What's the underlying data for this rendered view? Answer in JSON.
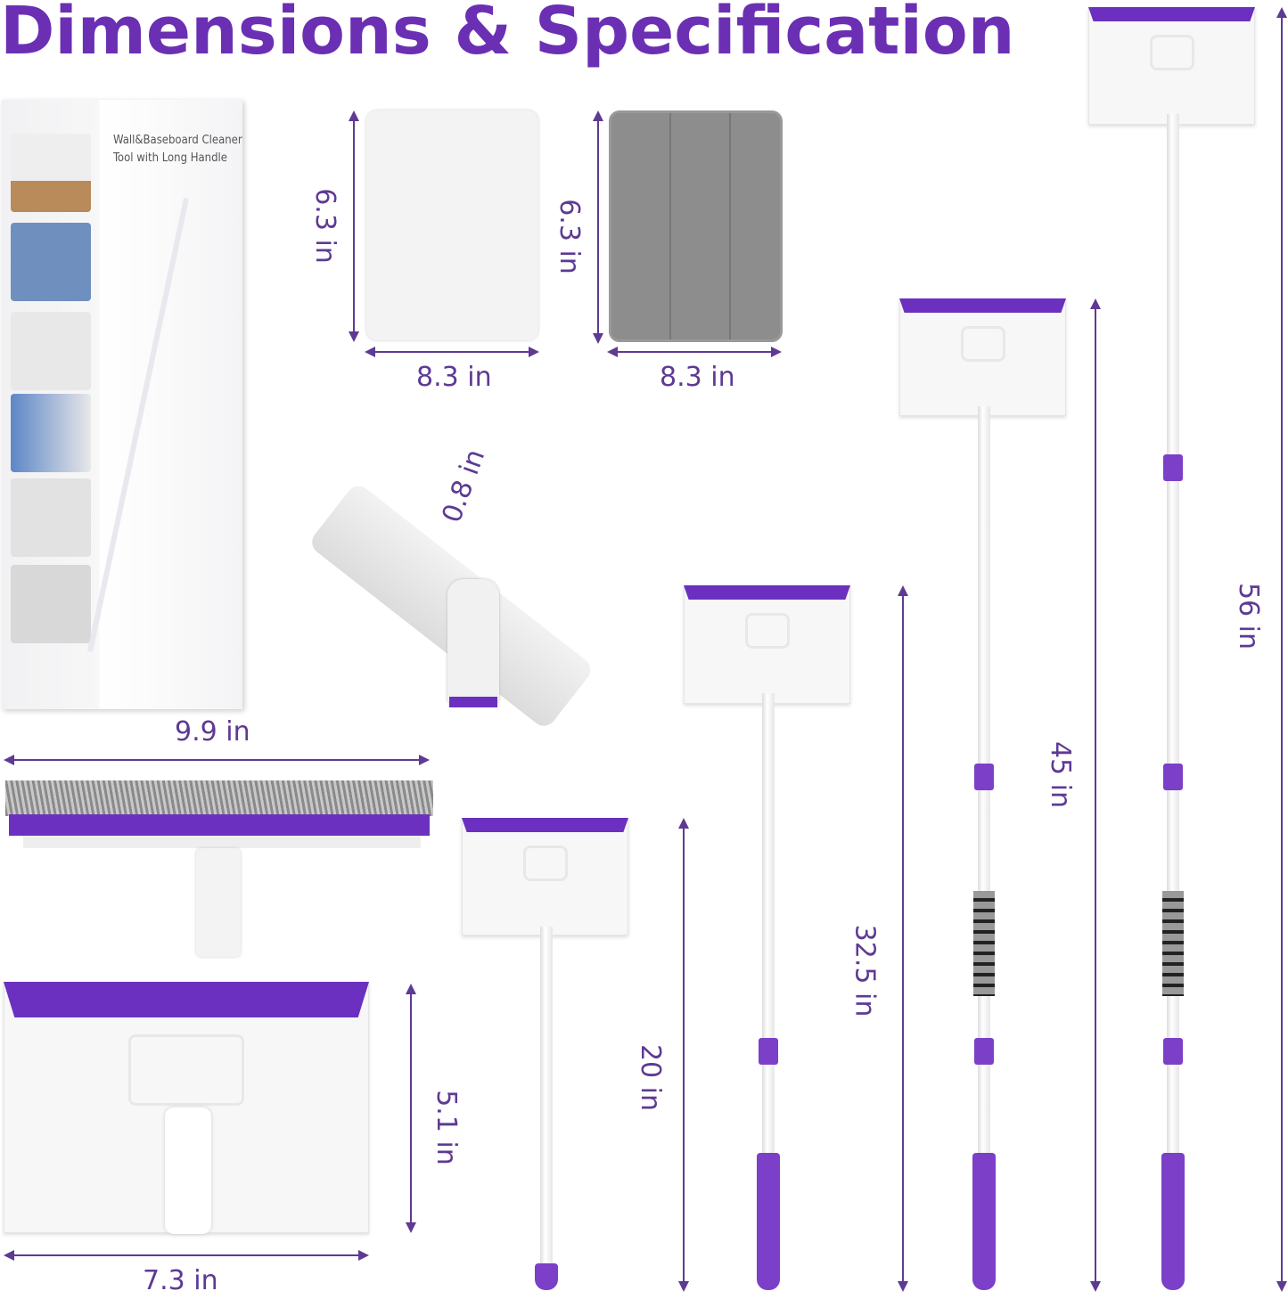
{
  "title": "Dimensions & Specification",
  "box": {
    "line1": "Wall&Baseboard Cleaner",
    "line2": "Tool with Long Handle"
  },
  "pads": [
    {
      "name": "white-pad",
      "height": "6.3 in",
      "width": "8.3 in",
      "color": "#f2f2f2"
    },
    {
      "name": "grey-pad",
      "height": "6.3 in",
      "width": "8.3 in",
      "color": "#8a8a8a"
    }
  ],
  "pivot": {
    "thickness": "0.8 in"
  },
  "brush": {
    "width": "9.9 in"
  },
  "head": {
    "height": "5.1 in",
    "width": "7.3 in"
  },
  "mops": [
    {
      "length": "20 in"
    },
    {
      "length": "32.5 in"
    },
    {
      "length": "45 in"
    },
    {
      "length": "56 in"
    }
  ],
  "colors": {
    "accent": "#6b2fb3",
    "dimension": "#5e3a93"
  }
}
